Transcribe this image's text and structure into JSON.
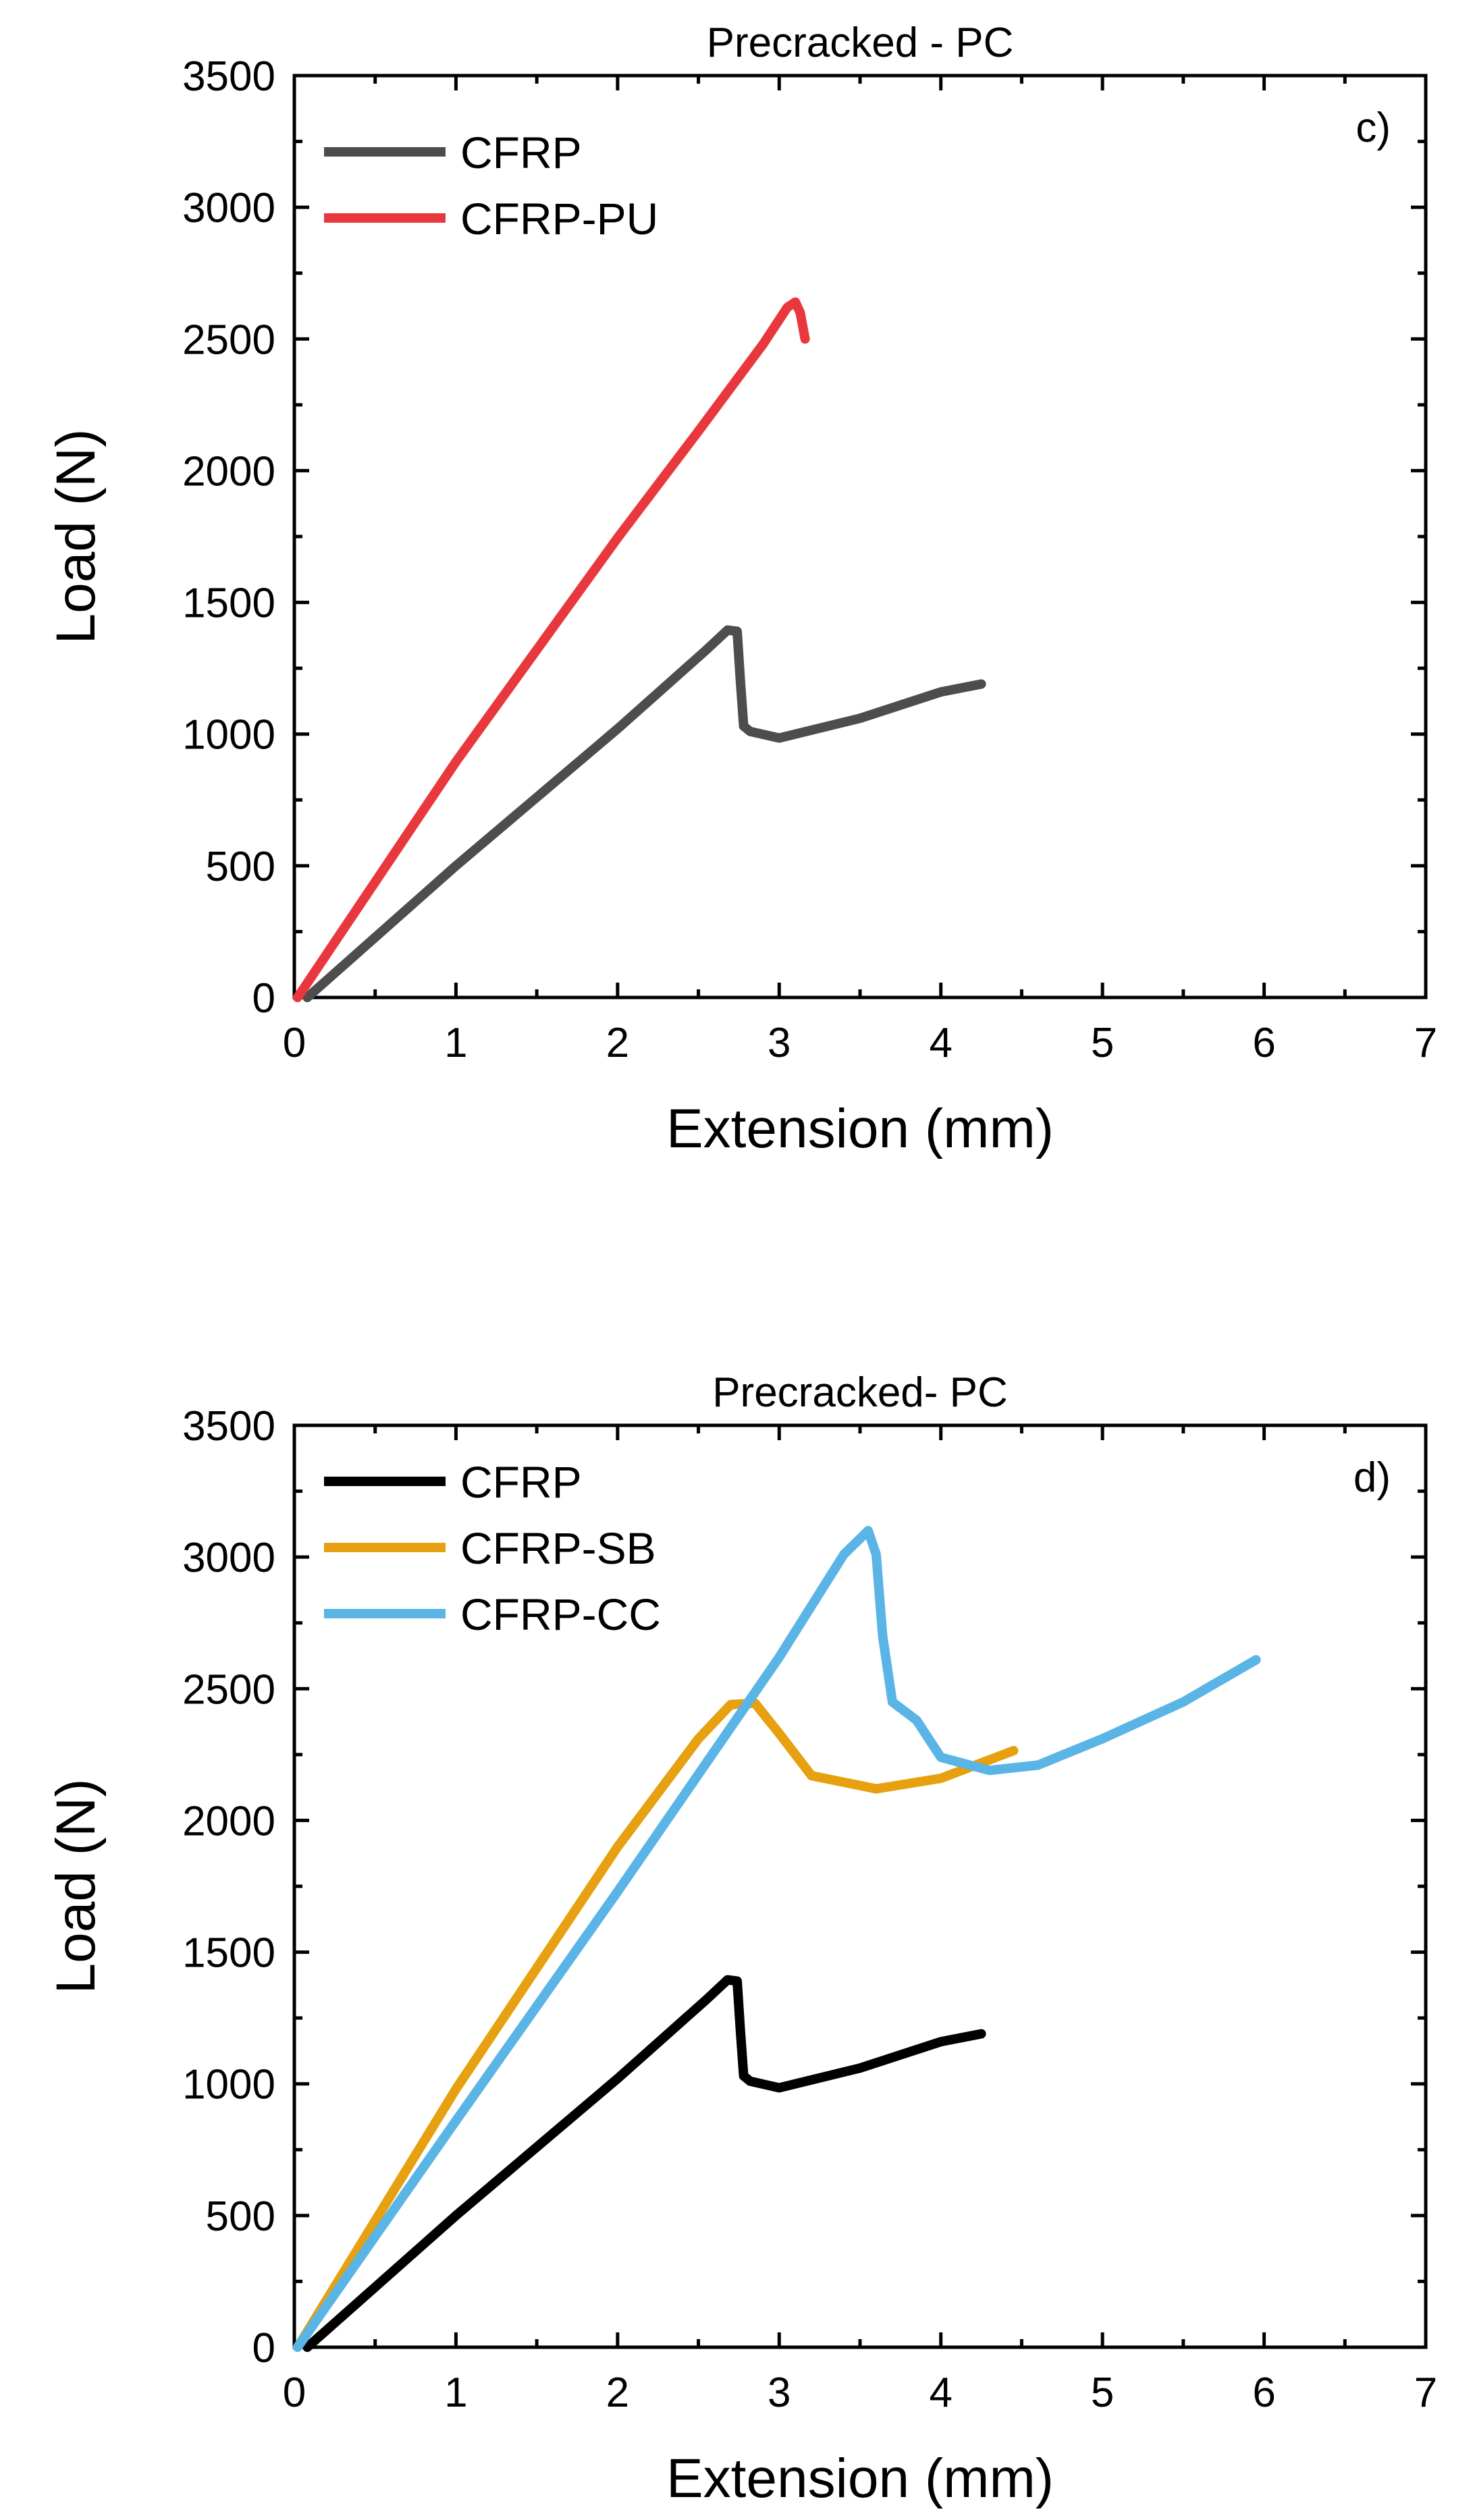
{
  "chart_data": [
    {
      "type": "line",
      "title": "Precracked - PC",
      "panel_label": "c)",
      "xlabel": "Extension (mm)",
      "ylabel": "Load (N)",
      "xlim": [
        0,
        7
      ],
      "ylim": [
        0,
        3500
      ],
      "x_ticks": [
        "0",
        "1",
        "2",
        "3",
        "4",
        "5",
        "6",
        "7"
      ],
      "y_ticks": [
        "0",
        "500",
        "1000",
        "1500",
        "2000",
        "2500",
        "3000",
        "3500"
      ],
      "series": [
        {
          "name": "CFRP",
          "color": "#4d4d4d",
          "x": [
            0.08,
            1.0,
            2.0,
            2.55,
            2.68,
            2.74,
            2.76,
            2.78,
            2.82,
            3.0,
            3.5,
            4.0,
            4.25
          ],
          "y": [
            0,
            500,
            1020,
            1320,
            1395,
            1390,
            1200,
            1030,
            1010,
            985,
            1060,
            1160,
            1190
          ]
        },
        {
          "name": "CFRP-PU",
          "color": "#e8383d",
          "x": [
            0.02,
            1.0,
            2.0,
            2.5,
            2.9,
            3.05,
            3.1,
            3.13,
            3.16
          ],
          "y": [
            0,
            895,
            1745,
            2150,
            2480,
            2620,
            2640,
            2600,
            2500
          ]
        }
      ]
    },
    {
      "type": "line",
      "title": "Precracked- PC",
      "panel_label": "d)",
      "xlabel": "Extension (mm)",
      "ylabel": "Load (N)",
      "xlim": [
        0,
        7
      ],
      "ylim": [
        0,
        3500
      ],
      "x_ticks": [
        "0",
        "1",
        "2",
        "3",
        "4",
        "5",
        "6",
        "7"
      ],
      "y_ticks": [
        "0",
        "500",
        "1000",
        "1500",
        "2000",
        "2500",
        "3000",
        "3500"
      ],
      "series": [
        {
          "name": "CFRP",
          "color": "#000000",
          "x": [
            0.08,
            1.0,
            2.0,
            2.55,
            2.68,
            2.74,
            2.76,
            2.78,
            2.82,
            3.0,
            3.5,
            4.0,
            4.25
          ],
          "y": [
            0,
            500,
            1020,
            1320,
            1395,
            1390,
            1200,
            1030,
            1010,
            985,
            1060,
            1160,
            1190
          ]
        },
        {
          "name": "CFRP-SB",
          "color": "#e6a010",
          "x": [
            0.02,
            1.0,
            2.0,
            2.5,
            2.7,
            2.85,
            3.0,
            3.2,
            3.6,
            4.0,
            4.45
          ],
          "y": [
            0,
            980,
            1900,
            2310,
            2440,
            2445,
            2330,
            2170,
            2120,
            2160,
            2265
          ]
        },
        {
          "name": "CFRP-CC",
          "color": "#5ab4e5",
          "x": [
            0.02,
            1.0,
            2.0,
            3.0,
            3.4,
            3.55,
            3.6,
            3.64,
            3.7,
            3.85,
            4.0,
            4.3,
            4.6,
            5.0,
            5.5,
            5.95
          ],
          "y": [
            0,
            860,
            1730,
            2620,
            3010,
            3100,
            3010,
            2700,
            2450,
            2380,
            2240,
            2190,
            2210,
            2310,
            2450,
            2610
          ]
        }
      ]
    }
  ]
}
